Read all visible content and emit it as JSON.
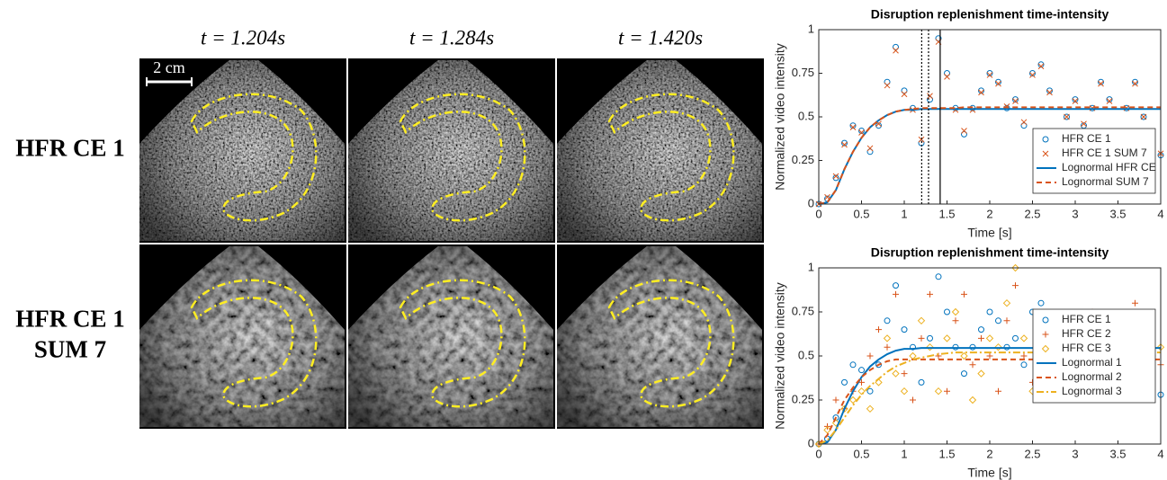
{
  "figure": {
    "time_labels": [
      "t = 1.204s",
      "t = 1.284s",
      "t = 1.420s"
    ],
    "row_labels": [
      [
        "HFR CE 1"
      ],
      [
        "HFR CE 1",
        "SUM 7"
      ]
    ],
    "scale_bar": "2 cm"
  },
  "chart_data": [
    {
      "type": "scatter",
      "title": "Disruption replenishment time-intensity",
      "xlabel": "Time [s]",
      "ylabel": "Normalized video intensity",
      "xlim": [
        0,
        4
      ],
      "ylim": [
        0,
        1
      ],
      "xticks": [
        0,
        0.5,
        1,
        1.5,
        2,
        2.5,
        3,
        3.5,
        4
      ],
      "yticks": [
        0,
        0.25,
        0.5,
        0.75,
        1
      ],
      "legend": "lower right",
      "vlines": [
        1.204,
        1.284,
        1.42
      ],
      "vline_styles": [
        "dotted",
        "dotted",
        "solid"
      ],
      "x": [
        0,
        0.1,
        0.2,
        0.3,
        0.4,
        0.5,
        0.6,
        0.7,
        0.8,
        0.9,
        1,
        1.1,
        1.2,
        1.3,
        1.4,
        1.5,
        1.6,
        1.7,
        1.8,
        1.9,
        2,
        2.1,
        2.2,
        2.3,
        2.4,
        2.5,
        2.6,
        2.7,
        2.8,
        2.9,
        3,
        3.1,
        3.2,
        3.3,
        3.4,
        3.5,
        3.6,
        3.7,
        3.8,
        3.9,
        4
      ],
      "series": [
        {
          "name": "HFR CE 1",
          "color": "#0072BD",
          "marker": "o",
          "values": [
            0,
            0.03,
            0.15,
            0.35,
            0.45,
            0.42,
            0.3,
            0.45,
            0.7,
            0.9,
            0.65,
            0.55,
            0.35,
            0.6,
            0.95,
            0.75,
            0.55,
            0.4,
            0.55,
            0.65,
            0.75,
            0.7,
            0.55,
            0.6,
            0.45,
            0.75,
            0.8,
            0.65,
            0.35,
            0.5,
            0.6,
            0.45,
            0.55,
            0.7,
            0.6,
            0.4,
            0.55,
            0.7,
            0.5,
            0.35,
            0.28
          ]
        },
        {
          "name": "HFR CE 1 SUM 7",
          "color": "#D95319",
          "marker": "x",
          "values": [
            0,
            0.04,
            0.16,
            0.34,
            0.44,
            0.41,
            0.32,
            0.46,
            0.68,
            0.88,
            0.63,
            0.54,
            0.37,
            0.62,
            0.93,
            0.73,
            0.54,
            0.42,
            0.54,
            0.64,
            0.74,
            0.69,
            0.56,
            0.59,
            0.47,
            0.74,
            0.79,
            0.64,
            0.37,
            0.5,
            0.59,
            0.46,
            0.55,
            0.69,
            0.59,
            0.41,
            0.55,
            0.69,
            0.5,
            0.36,
            0.29
          ]
        },
        {
          "name": "Lognormal HFR CE",
          "color": "#0072BD",
          "line": "solid",
          "values": [
            0,
            0.01,
            0.08,
            0.2,
            0.3,
            0.38,
            0.44,
            0.48,
            0.51,
            0.53,
            0.54,
            0.54,
            0.545,
            0.545,
            0.545,
            0.545,
            0.545,
            0.545,
            0.545,
            0.545,
            0.545,
            0.545,
            0.545,
            0.545,
            0.545,
            0.545,
            0.545,
            0.545,
            0.545,
            0.545,
            0.545,
            0.545,
            0.545,
            0.545,
            0.545,
            0.545,
            0.545,
            0.545,
            0.545,
            0.545,
            0.545
          ]
        },
        {
          "name": "Lognormal SUM 7",
          "color": "#D95319",
          "line": "dashed",
          "values": [
            0,
            0.01,
            0.08,
            0.2,
            0.3,
            0.38,
            0.44,
            0.48,
            0.51,
            0.53,
            0.54,
            0.545,
            0.55,
            0.55,
            0.55,
            0.55,
            0.55,
            0.555,
            0.555,
            0.555,
            0.555,
            0.555,
            0.555,
            0.555,
            0.555,
            0.555,
            0.555,
            0.555,
            0.555,
            0.555,
            0.555,
            0.555,
            0.555,
            0.555,
            0.555,
            0.555,
            0.555,
            0.555,
            0.555,
            0.555,
            0.555
          ]
        }
      ]
    },
    {
      "type": "scatter",
      "title": "Disruption replenishment time-intensity",
      "xlabel": "Time [s]",
      "ylabel": "Normalized video intensity",
      "xlim": [
        0,
        4
      ],
      "ylim": [
        0,
        1
      ],
      "xticks": [
        0,
        0.5,
        1,
        1.5,
        2,
        2.5,
        3,
        3.5,
        4
      ],
      "yticks": [
        0,
        0.25,
        0.5,
        0.75,
        1
      ],
      "legend": "right",
      "x": [
        0,
        0.1,
        0.2,
        0.3,
        0.4,
        0.5,
        0.6,
        0.7,
        0.8,
        0.9,
        1,
        1.1,
        1.2,
        1.3,
        1.4,
        1.5,
        1.6,
        1.7,
        1.8,
        1.9,
        2,
        2.1,
        2.2,
        2.3,
        2.4,
        2.5,
        2.6,
        2.7,
        2.8,
        2.9,
        3,
        3.1,
        3.2,
        3.3,
        3.4,
        3.5,
        3.6,
        3.7,
        3.8,
        3.9,
        4
      ],
      "series": [
        {
          "name": "HFR CE 1",
          "color": "#0072BD",
          "marker": "o",
          "values": [
            0,
            0.03,
            0.15,
            0.35,
            0.45,
            0.42,
            0.3,
            0.45,
            0.7,
            0.9,
            0.65,
            0.55,
            0.35,
            0.6,
            0.95,
            0.75,
            0.55,
            0.4,
            0.55,
            0.65,
            0.75,
            0.7,
            0.55,
            0.6,
            0.45,
            0.75,
            0.8,
            0.65,
            0.35,
            0.5,
            0.6,
            0.45,
            0.55,
            0.7,
            0.6,
            0.4,
            0.55,
            0.7,
            0.5,
            0.35,
            0.28
          ]
        },
        {
          "name": "HFR CE 2",
          "color": "#D95319",
          "marker": "+",
          "values": [
            0,
            0.1,
            0.25,
            0.2,
            0.3,
            0.35,
            0.5,
            0.65,
            0.55,
            0.85,
            0.4,
            0.25,
            0.6,
            0.85,
            0.5,
            0.3,
            0.7,
            0.85,
            0.45,
            0.6,
            0.5,
            0.3,
            0.7,
            0.9,
            0.5,
            0.35,
            0.45,
            0.6,
            0.4,
            0.3,
            0.45,
            0.65,
            0.75,
            0.55,
            0.35,
            0.45,
            0.7,
            0.8,
            0.55,
            0.4,
            0.45
          ]
        },
        {
          "name": "HFR CE 3",
          "color": "#EDB120",
          "marker": "d",
          "values": [
            0,
            0.08,
            0.12,
            0.2,
            0.25,
            0.3,
            0.2,
            0.35,
            0.6,
            0.4,
            0.3,
            0.5,
            0.7,
            0.55,
            0.3,
            0.6,
            0.75,
            0.5,
            0.25,
            0.4,
            0.6,
            0.55,
            0.8,
            1,
            0.6,
            0.3,
            0.4,
            0.6,
            0.55,
            0.45,
            0.35,
            0.5,
            0.6,
            0.45,
            0.3,
            0.5,
            0.65,
            0.55,
            0.45,
            0.5,
            0.55
          ]
        },
        {
          "name": "Lognormal 1",
          "color": "#0072BD",
          "line": "solid",
          "values": [
            0,
            0.01,
            0.08,
            0.2,
            0.3,
            0.38,
            0.44,
            0.48,
            0.51,
            0.53,
            0.54,
            0.54,
            0.545,
            0.545,
            0.545,
            0.545,
            0.545,
            0.545,
            0.545,
            0.545,
            0.545,
            0.545,
            0.545,
            0.545,
            0.545,
            0.545,
            0.545,
            0.545,
            0.545,
            0.545,
            0.545,
            0.545,
            0.545,
            0.545,
            0.545,
            0.545,
            0.545,
            0.545,
            0.545,
            0.545,
            0.545
          ]
        },
        {
          "name": "Lognormal 2",
          "color": "#D95319",
          "line": "dashed",
          "values": [
            0,
            0.05,
            0.15,
            0.25,
            0.32,
            0.38,
            0.42,
            0.45,
            0.47,
            0.48,
            0.48,
            0.48,
            0.48,
            0.48,
            0.48,
            0.48,
            0.48,
            0.48,
            0.48,
            0.48,
            0.48,
            0.48,
            0.48,
            0.48,
            0.48,
            0.48,
            0.48,
            0.48,
            0.48,
            0.48,
            0.48,
            0.48,
            0.48,
            0.48,
            0.48,
            0.48,
            0.48,
            0.48,
            0.48,
            0.48,
            0.48
          ]
        },
        {
          "name": "Lognormal 3",
          "color": "#EDB120",
          "line": "dashdot",
          "values": [
            0,
            0.02,
            0.08,
            0.15,
            0.22,
            0.28,
            0.33,
            0.37,
            0.41,
            0.44,
            0.46,
            0.48,
            0.49,
            0.5,
            0.51,
            0.515,
            0.52,
            0.52,
            0.52,
            0.52,
            0.52,
            0.52,
            0.52,
            0.52,
            0.52,
            0.52,
            0.52,
            0.52,
            0.52,
            0.52,
            0.52,
            0.52,
            0.52,
            0.52,
            0.52,
            0.52,
            0.52,
            0.52,
            0.52,
            0.52,
            0.52
          ]
        }
      ]
    }
  ]
}
